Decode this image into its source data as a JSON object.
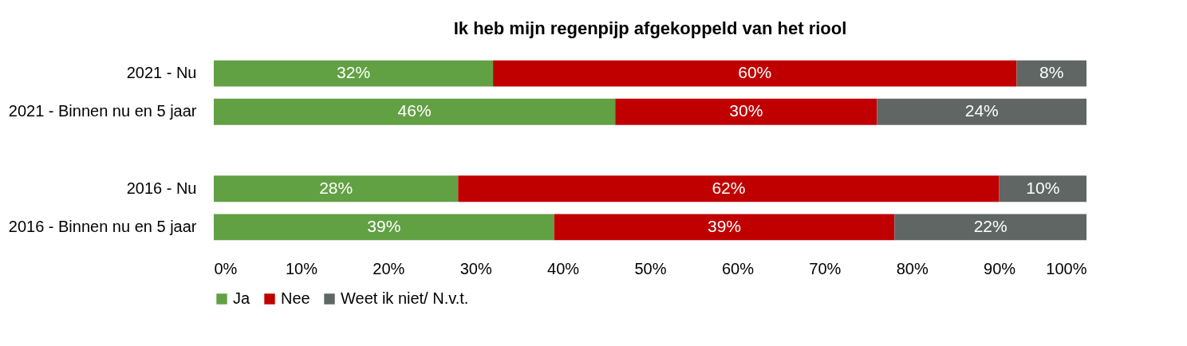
{
  "chart_data": {
    "type": "bar",
    "orientation": "horizontal",
    "stacked": true,
    "title": "Ik heb mijn regenpijp afgekoppeld van het riool",
    "categories": [
      "2021 - Nu",
      "2021 - Binnen nu en 5 jaar",
      null,
      "2016 - Nu",
      "2016 - Binnen nu en 5 jaar"
    ],
    "series": [
      {
        "name": "Ja",
        "color": "#62a044",
        "values": [
          32,
          46,
          null,
          28,
          39
        ],
        "value_labels": [
          "32%",
          "46%",
          null,
          "28%",
          "39%"
        ]
      },
      {
        "name": "Nee",
        "color": "#c00000",
        "values": [
          60,
          30,
          null,
          62,
          39
        ],
        "value_labels": [
          "60%",
          "30%",
          null,
          "62%",
          "39%"
        ]
      },
      {
        "name": "Weet ik niet/ N.v.t.",
        "color": "#5f6663",
        "values": [
          8,
          24,
          null,
          10,
          22
        ],
        "value_labels": [
          "8%",
          "24%",
          null,
          "10%",
          "22%"
        ]
      }
    ],
    "xlim": [
      0,
      100
    ],
    "xticks": [
      {
        "value": 0,
        "label": "0%"
      },
      {
        "value": 10,
        "label": "10%"
      },
      {
        "value": 20,
        "label": "20%"
      },
      {
        "value": 30,
        "label": "30%"
      },
      {
        "value": 40,
        "label": "40%"
      },
      {
        "value": 50,
        "label": "50%"
      },
      {
        "value": 60,
        "label": "60%"
      },
      {
        "value": 70,
        "label": "70%"
      },
      {
        "value": 80,
        "label": "80%"
      },
      {
        "value": 90,
        "label": "90%"
      },
      {
        "value": 100,
        "label": "100%"
      }
    ],
    "grid": false,
    "legend": "bottom"
  }
}
